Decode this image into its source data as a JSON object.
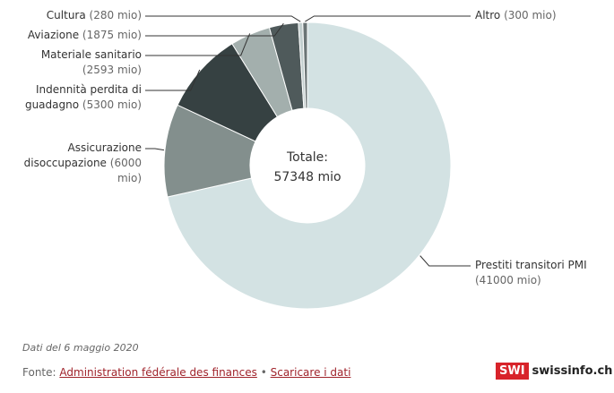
{
  "chart_data": {
    "type": "donut",
    "categories": [
      "Prestiti transitori PMI",
      "Assicurazione disoccupazione",
      "Indennità perdita di guadagno",
      "Materiale sanitario",
      "Aviazione",
      "Cultura",
      "Altro"
    ],
    "values": [
      41000,
      6000,
      5300,
      2593,
      1875,
      280,
      300
    ],
    "value_labels": [
      "(41000 mio)",
      "(6000 mio)",
      "(5300 mio)",
      "(2593 mio)",
      "(1875 mio)",
      "(280 mio)",
      "(300 mio)"
    ],
    "colors": [
      "#d3e2e3",
      "#838f8d",
      "#364142",
      "#a3afad",
      "#4f5a5b",
      "#c3cfcf",
      "#6a7475"
    ],
    "center_label": "Totale:",
    "center_value_label": "57348 mio"
  },
  "note": "Dati del 6 maggio 2020",
  "source": {
    "prefix": "Fonte:",
    "links": [
      "Administration fédérale des finances",
      "Scaricare i dati"
    ],
    "separator": "•"
  },
  "logo": {
    "badge": "SWI",
    "name": "swissinfo.ch"
  }
}
